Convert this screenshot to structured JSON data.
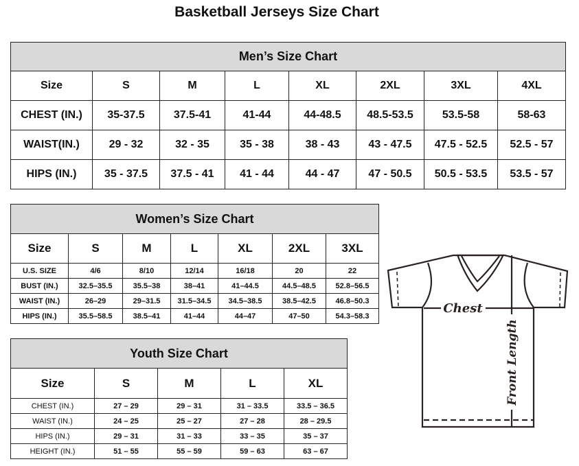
{
  "title": "Basketball Jerseys Size Chart",
  "men": {
    "caption": "Men’s Size Chart",
    "header": [
      "Size",
      "S",
      "M",
      "L",
      "XL",
      "2XL",
      "3XL",
      "4XL"
    ],
    "rows": [
      [
        "CHEST (IN.)",
        "35-37.5",
        "37.5-41",
        "41-44",
        "44-48.5",
        "48.5-53.5",
        "53.5-58",
        "58-63"
      ],
      [
        "WAIST(IN.)",
        "29 - 32",
        "32 - 35",
        "35 - 38",
        "38 - 43",
        "43 - 47.5",
        "47.5 - 52.5",
        "52.5 - 57"
      ],
      [
        "HIPS (IN.)",
        "35 - 37.5",
        "37.5 - 41",
        "41 - 44",
        "44 - 47",
        "47 - 50.5",
        "50.5 - 53.5",
        "53.5 - 57"
      ]
    ]
  },
  "women": {
    "caption": "Women’s Size Chart",
    "header": [
      "Size",
      "S",
      "M",
      "L",
      "XL",
      "2XL",
      "3XL"
    ],
    "rows": [
      [
        "U.S. SIZE",
        "4/6",
        "8/10",
        "12/14",
        "16/18",
        "20",
        "22"
      ],
      [
        "BUST (IN.)",
        "32.5–35.5",
        "35.5–38",
        "38–41",
        "41–44.5",
        "44.5–48.5",
        "52.8–56.5"
      ],
      [
        "WAIST (IN.)",
        "26–29",
        "29–31.5",
        "31.5–34.5",
        "34.5–38.5",
        "38.5–42.5",
        "46.8–50.3"
      ],
      [
        "HIPS (IN.)",
        "35.5–58.5",
        "38.5–41",
        "41–44",
        "44–47",
        "47–50",
        "54.3–58.3"
      ]
    ]
  },
  "youth": {
    "caption": "Youth Size Chart",
    "header": [
      "Size",
      "S",
      "M",
      "L",
      "XL"
    ],
    "rows": [
      [
        "CHEST (IN.)",
        "27 – 29",
        "29 – 31",
        "31 – 33.5",
        "33.5 – 36.5"
      ],
      [
        "WAIST (IN.)",
        "24 – 25",
        "25 – 27",
        "27 – 28",
        "28 – 29.5"
      ],
      [
        "HIPS (IN.)",
        "29 – 31",
        "31 – 33",
        "33 – 35",
        "35 – 37"
      ],
      [
        "HEIGHT (IN.)",
        "51 – 55",
        "55 – 59",
        "59 – 63",
        "63 – 67"
      ]
    ]
  },
  "diagram": {
    "chest_label": "Chest",
    "length_label": "Front Length",
    "line_color": "#2a2220",
    "icon": "t-shirt-icon"
  }
}
